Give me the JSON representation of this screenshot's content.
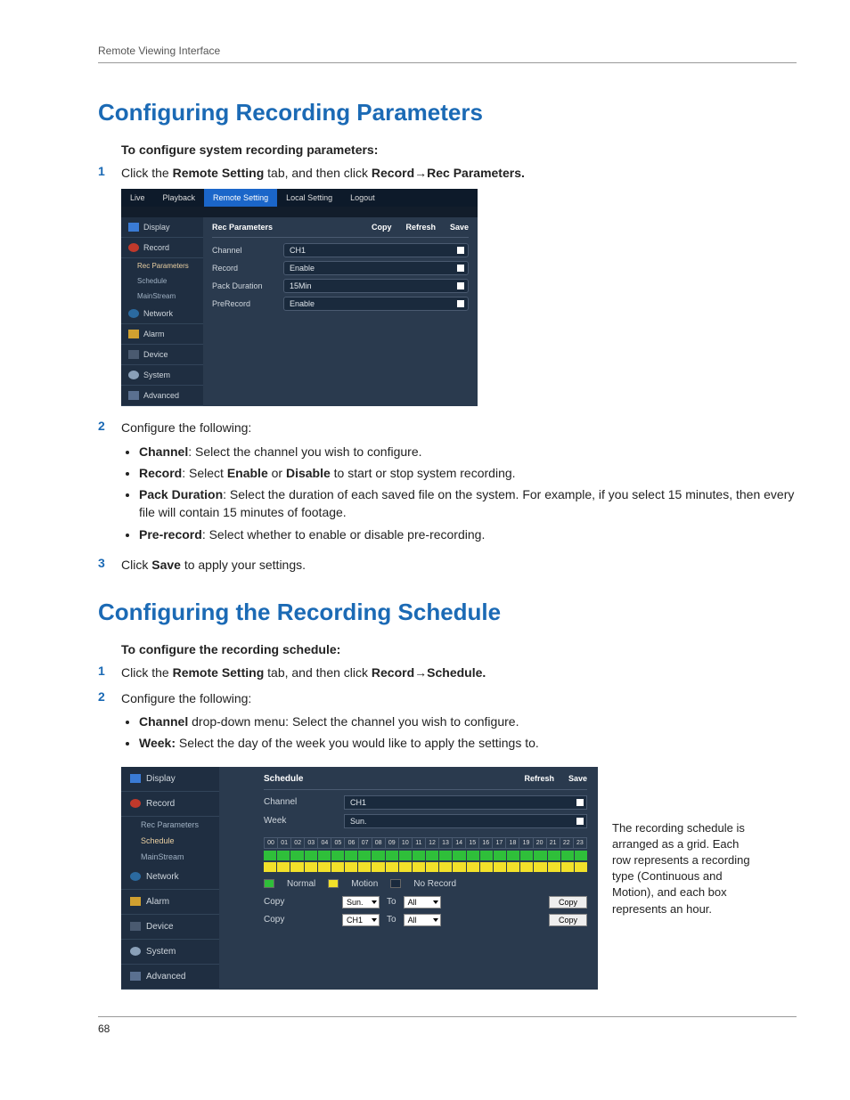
{
  "header": {
    "running": "Remote Viewing Interface"
  },
  "colors": {
    "accent": "#1b6ab5",
    "ss_bg": "#2a3a4e",
    "ss_nav_bg": "#1f2e41",
    "tab_active": "#1b66c9",
    "normal_color": "#2fbf3a",
    "motion_color": "#f2e12a",
    "norecord_color": "#1a2a3d"
  },
  "s1": {
    "heading": "Configuring Recording Parameters",
    "lead": "To configure system recording parameters:",
    "step1_a": "Click the ",
    "step1_b": "Remote Setting",
    "step1_c": " tab, and then click ",
    "step1_d": "Record",
    "step1_e": "Rec Parameters.",
    "step2": "Configure the following:",
    "b_channel_t": "Channel",
    "b_channel_d": ": Select the channel you wish to configure.",
    "b_record_t": "Record",
    "b_record_d1": ": Select ",
    "b_record_en": "Enable",
    "b_record_d2": " or ",
    "b_record_dis": "Disable",
    "b_record_d3": " to start or stop system recording.",
    "b_pack_t": "Pack Duration",
    "b_pack_d": ": Select the duration of each saved file on the system. For example, if you select 15 minutes, then every file will contain 15 minutes of footage.",
    "b_pre_t": "Pre-record",
    "b_pre_d": ": Select whether to enable or disable pre-recording.",
    "step3_a": "Click ",
    "step3_b": "Save",
    "step3_c": " to apply your settings."
  },
  "ss1": {
    "tabs": {
      "live": "Live",
      "playback": "Playback",
      "remote": "Remote Setting",
      "local": "Local Setting",
      "logout": "Logout"
    },
    "nav": {
      "display": "Display",
      "record": "Record",
      "rec_params": "Rec Parameters",
      "schedule": "Schedule",
      "mainstream": "MainStream",
      "network": "Network",
      "alarm": "Alarm",
      "device": "Device",
      "system": "System",
      "advanced": "Advanced"
    },
    "panel": {
      "title": "Rec Parameters",
      "copy": "Copy",
      "refresh": "Refresh",
      "save": "Save",
      "channel_l": "Channel",
      "channel_v": "CH1",
      "record_l": "Record",
      "record_v": "Enable",
      "pack_l": "Pack Duration",
      "pack_v": "15Min",
      "pre_l": "PreRecord",
      "pre_v": "Enable"
    }
  },
  "s2": {
    "heading": "Configuring the Recording Schedule",
    "lead": "To configure the recording schedule:",
    "step1_a": "Click the ",
    "step1_b": "Remote Setting",
    "step1_c": " tab, and then click ",
    "step1_d": "Record",
    "step1_e": "Schedule.",
    "step2": "Configure the following:",
    "b_channel_t": "Channel",
    "b_channel_d": " drop-down menu: Select the channel you wish to configure.",
    "b_week_t": "Week:",
    "b_week_d": " Select the day of the week you would like to apply the settings to."
  },
  "ss2": {
    "nav": {
      "display": "Display",
      "record": "Record",
      "rec_params": "Rec Parameters",
      "schedule": "Schedule",
      "mainstream": "MainStream",
      "network": "Network",
      "alarm": "Alarm",
      "device": "Device",
      "system": "System",
      "advanced": "Advanced"
    },
    "panel": {
      "title": "Schedule",
      "refresh": "Refresh",
      "save": "Save",
      "channel_l": "Channel",
      "channel_v": "CH1",
      "week_l": "Week",
      "week_v": "Sun.",
      "hours": [
        "00",
        "01",
        "02",
        "03",
        "04",
        "05",
        "06",
        "07",
        "08",
        "09",
        "10",
        "11",
        "12",
        "13",
        "14",
        "15",
        "16",
        "17",
        "18",
        "19",
        "20",
        "21",
        "22",
        "23"
      ],
      "legend_normal": "Normal",
      "legend_motion": "Motion",
      "legend_norecord": "No Record",
      "copy_l": "Copy",
      "to_l": "To",
      "all_l": "All",
      "copy_btn": "Copy",
      "day_from": "Sun.",
      "ch_from": "CH1"
    }
  },
  "caption": "The recording schedule is arranged as a grid. Each row represents a recording type (Continuous and Motion), and each box represents an hour.",
  "footer": {
    "page": "68"
  }
}
